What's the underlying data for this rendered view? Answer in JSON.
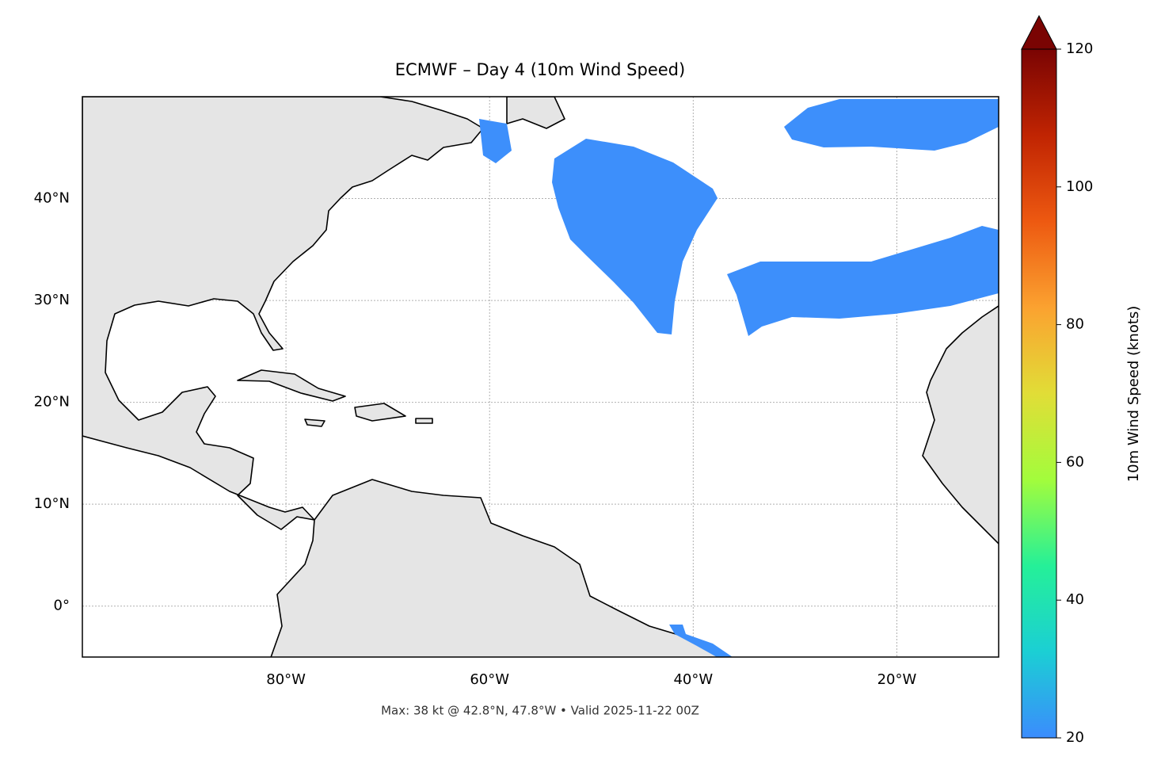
{
  "chart_data": {
    "type": "map",
    "title": "ECMWF – Day 4 (10m Wind Speed)",
    "footer": "Max: 38 kt @ 42.8°N, 47.8°W • Valid 2025-11-22 00Z",
    "xlim": [
      -100,
      -10
    ],
    "ylim": [
      -5,
      50
    ],
    "xticks": [
      {
        "value": -80,
        "label": "80°W"
      },
      {
        "value": -60,
        "label": "60°W"
      },
      {
        "value": -40,
        "label": "40°W"
      },
      {
        "value": -20,
        "label": "20°W"
      }
    ],
    "yticks": [
      {
        "value": 0,
        "label": "0°"
      },
      {
        "value": 10,
        "label": "10°N"
      },
      {
        "value": 20,
        "label": "20°N"
      },
      {
        "value": 30,
        "label": "30°N"
      },
      {
        "value": 40,
        "label": "40°N"
      }
    ],
    "grid": true,
    "colorbar": {
      "label": "10m Wind Speed (knots)",
      "lim": [
        20,
        120
      ],
      "ticks": [
        20,
        40,
        60,
        80,
        100,
        120
      ],
      "colors": [
        "#3b8cfd",
        "#1bcfd4",
        "#25f098",
        "#a3fc3c",
        "#e1dd37",
        "#fba230",
        "#ed5911",
        "#c02402",
        "#7a0403"
      ]
    }
  }
}
